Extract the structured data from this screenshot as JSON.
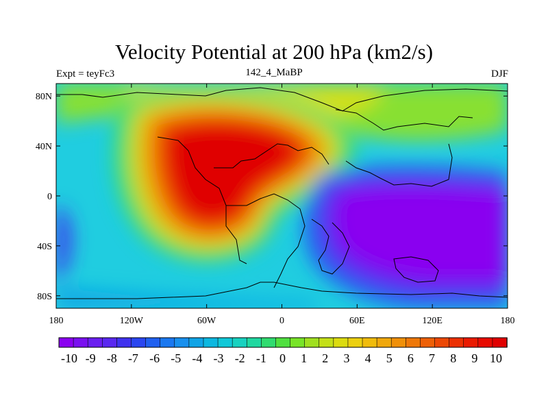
{
  "title": "Velocity Potential at 200 hPa (km2/s)",
  "subtitle_left": "Expt = teyFc3",
  "subtitle_center": "142_4_MaBP",
  "subtitle_right": "DJF",
  "map": {
    "lon_range": [
      -180,
      180
    ],
    "lat_range": [
      -90,
      90
    ],
    "x_ticks": [
      {
        "value": -180,
        "label": "180"
      },
      {
        "value": -120,
        "label": "120W"
      },
      {
        "value": -60,
        "label": "60W"
      },
      {
        "value": 0,
        "label": "0"
      },
      {
        "value": 60,
        "label": "60E"
      },
      {
        "value": 120,
        "label": "120E"
      },
      {
        "value": 180,
        "label": "180"
      }
    ],
    "y_ticks": [
      {
        "value": 80,
        "label": "80N"
      },
      {
        "value": 40,
        "label": "40N"
      },
      {
        "value": 0,
        "label": "0"
      },
      {
        "value": -40,
        "label": "40S"
      },
      {
        "value": -80,
        "label": "80S"
      }
    ],
    "field_features": [
      {
        "name": "western-hemisphere-maximum",
        "lon": -55,
        "lat": 20,
        "value": 10.5
      },
      {
        "name": "eastern-hemisphere-minimum",
        "lon": 110,
        "lat": -20,
        "value": -10.5
      }
    ]
  },
  "colorbar": {
    "labels": [
      "-10",
      "-9",
      "-8",
      "-7",
      "-6",
      "-5",
      "-4",
      "-3",
      "-2",
      "-1",
      "0",
      "1",
      "2",
      "3",
      "4",
      "5",
      "6",
      "7",
      "8",
      "9",
      "10"
    ],
    "colors": [
      "#8a00f0",
      "#7a10f0",
      "#6a1ef0",
      "#5a28f0",
      "#4032ee",
      "#2a46f0",
      "#2060f0",
      "#1a78f0",
      "#1890ee",
      "#10a4e6",
      "#0cb8e0",
      "#10c8d8",
      "#18d2c0",
      "#20d8a0",
      "#30dc70",
      "#50e040",
      "#78e428",
      "#a0e020",
      "#c4e018",
      "#dcdc10",
      "#ecd010",
      "#f0bc0c",
      "#f0a80c",
      "#f09008",
      "#ee7808",
      "#ee6006",
      "#ec4804",
      "#ec3002",
      "#ea1a00",
      "#e80a00",
      "#e00000"
    ]
  }
}
